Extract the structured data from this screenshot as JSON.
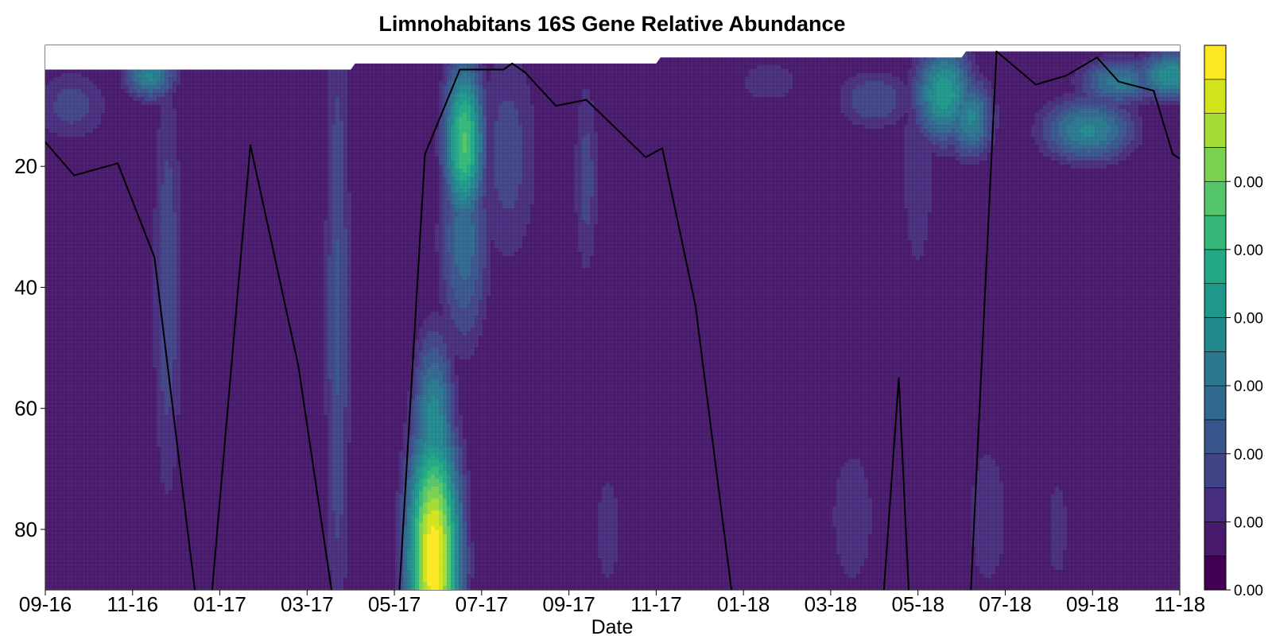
{
  "chart_data": {
    "type": "heatmap",
    "title": "Limnohabitans 16S Gene Relative Abundance",
    "xlabel": "Date",
    "ylabel": "",
    "y_inverted": true,
    "ylim": [
      0,
      90
    ],
    "x_ticks": [
      "09-16",
      "11-16",
      "01-17",
      "03-17",
      "05-17",
      "07-17",
      "09-17",
      "11-17",
      "01-18",
      "03-18",
      "05-18",
      "07-18",
      "09-18",
      "11-18"
    ],
    "y_ticks": [
      20,
      40,
      60,
      80
    ],
    "colorbar": {
      "tick_labels": [
        "0.00",
        "0.00",
        "0.00",
        "0.00",
        "0.00",
        "0.00",
        "0.00"
      ],
      "colors": [
        "#440154",
        "#481a6c",
        "#472f7d",
        "#414487",
        "#39568c",
        "#31688e",
        "#2a788e",
        "#23888e",
        "#1f988b",
        "#22a884",
        "#35b779",
        "#54c568",
        "#7ad151",
        "#a5db36",
        "#d2e21b",
        "#fde725"
      ]
    },
    "surface_depth": [
      {
        "x": 0,
        "depth": 4
      },
      {
        "x": 3.5,
        "depth": 4
      },
      {
        "x": 3.55,
        "depth": 3
      },
      {
        "x": 7.0,
        "depth": 3
      },
      {
        "x": 7.05,
        "depth": 2
      },
      {
        "x": 10.5,
        "depth": 2
      },
      {
        "x": 10.55,
        "depth": 1
      },
      {
        "x": 14.0,
        "depth": 1
      }
    ],
    "series": [
      {
        "type": "line",
        "color": "#000000",
        "points": [
          [
            0.0,
            16
          ],
          [
            0.33,
            21.5
          ],
          [
            0.83,
            19.5
          ],
          [
            1.25,
            35
          ],
          [
            1.73,
            92
          ],
          [
            1.9,
            92
          ],
          [
            2.35,
            16.5
          ],
          [
            2.9,
            53
          ],
          [
            3.3,
            92
          ],
          [
            4.05,
            92
          ],
          [
            4.35,
            18
          ],
          [
            4.75,
            4
          ],
          [
            5.25,
            4
          ],
          [
            5.35,
            3
          ],
          [
            5.5,
            4.5
          ],
          [
            5.85,
            10
          ],
          [
            6.2,
            9
          ],
          [
            6.88,
            18.5
          ],
          [
            7.07,
            17
          ],
          [
            7.45,
            43
          ],
          [
            7.88,
            92
          ],
          [
            9.6,
            92
          ],
          [
            9.78,
            55
          ],
          [
            9.9,
            92
          ],
          [
            10.6,
            92
          ],
          [
            10.9,
            1
          ],
          [
            11.35,
            6.5
          ],
          [
            11.7,
            5
          ],
          [
            12.05,
            2
          ],
          [
            12.3,
            6
          ],
          [
            12.7,
            7.5
          ],
          [
            12.92,
            18
          ],
          [
            13.25,
            21
          ],
          [
            14.0,
            28.5
          ]
        ]
      }
    ],
    "hotspots": [
      {
        "x": 4.45,
        "depth": 85,
        "sx": 0.22,
        "sy": 16,
        "level": 1.0
      },
      {
        "x": 4.45,
        "depth": 64,
        "sx": 0.18,
        "sy": 12,
        "level": 0.5
      },
      {
        "x": 4.8,
        "depth": 16,
        "sx": 0.17,
        "sy": 10,
        "level": 0.7
      },
      {
        "x": 4.8,
        "depth": 32,
        "sx": 0.22,
        "sy": 14,
        "level": 0.35
      },
      {
        "x": 5.3,
        "depth": 18,
        "sx": 0.3,
        "sy": 16,
        "level": 0.22
      },
      {
        "x": 6.2,
        "depth": 22,
        "sx": 0.12,
        "sy": 14,
        "level": 0.22
      },
      {
        "x": 1.2,
        "depth": 5,
        "sx": 0.22,
        "sy": 3,
        "level": 0.45
      },
      {
        "x": 0.3,
        "depth": 10,
        "sx": 0.35,
        "sy": 5,
        "level": 0.22
      },
      {
        "x": 1.4,
        "depth": 40,
        "sx": 0.14,
        "sy": 30,
        "level": 0.24
      },
      {
        "x": 3.35,
        "depth": 45,
        "sx": 0.12,
        "sy": 45,
        "level": 0.26
      },
      {
        "x": 10.3,
        "depth": 8,
        "sx": 0.25,
        "sy": 6,
        "level": 0.55
      },
      {
        "x": 10.6,
        "depth": 12,
        "sx": 0.2,
        "sy": 5,
        "level": 0.45
      },
      {
        "x": 11.95,
        "depth": 14,
        "sx": 0.4,
        "sy": 4,
        "level": 0.45
      },
      {
        "x": 12.3,
        "depth": 6,
        "sx": 0.35,
        "sy": 3,
        "level": 0.4
      },
      {
        "x": 12.9,
        "depth": 5,
        "sx": 0.3,
        "sy": 3,
        "level": 0.5
      },
      {
        "x": 9.5,
        "depth": 9,
        "sx": 0.35,
        "sy": 4,
        "level": 0.25
      },
      {
        "x": 10.0,
        "depth": 20,
        "sx": 0.18,
        "sy": 18,
        "level": 0.18
      },
      {
        "x": 10.8,
        "depth": 78,
        "sx": 0.22,
        "sy": 12,
        "level": 0.18
      },
      {
        "x": 9.25,
        "depth": 78,
        "sx": 0.3,
        "sy": 14,
        "level": 0.16
      },
      {
        "x": 6.45,
        "depth": 80,
        "sx": 0.15,
        "sy": 10,
        "level": 0.17
      },
      {
        "x": 13.6,
        "depth": 45,
        "sx": 0.3,
        "sy": 14,
        "level": 0.2
      },
      {
        "x": 8.3,
        "depth": 6,
        "sx": 0.4,
        "sy": 4,
        "level": 0.16
      },
      {
        "x": 11.6,
        "depth": 80,
        "sx": 0.14,
        "sy": 10,
        "level": 0.16
      }
    ]
  }
}
